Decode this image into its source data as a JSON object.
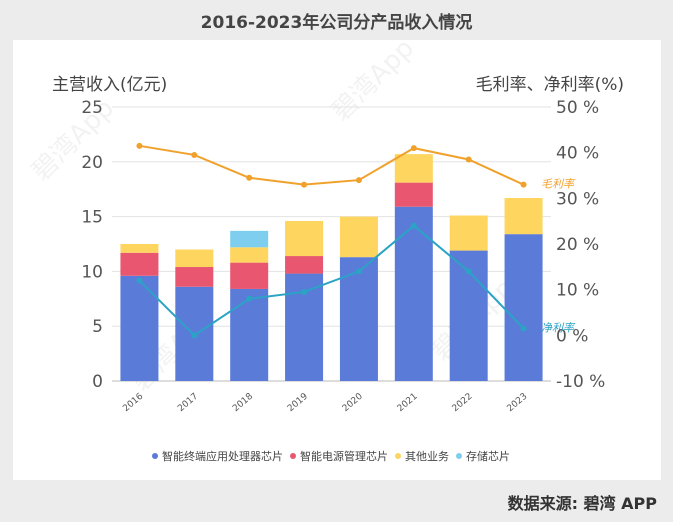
{
  "title": "2016-2023年公司分产品收入情况",
  "source": "数据来源: 碧湾 APP",
  "chart_data": {
    "type": "bar",
    "stacked": true,
    "categories": [
      "2016",
      "2017",
      "2018",
      "2019",
      "2020",
      "2021",
      "2022",
      "2023"
    ],
    "series": [
      {
        "name": "智能终端应用处理器芯片",
        "color": "#5b7bd8",
        "values": [
          9.6,
          8.6,
          8.4,
          9.8,
          11.3,
          15.9,
          11.9,
          13.4
        ]
      },
      {
        "name": "智能电源管理芯片",
        "color": "#e8566f",
        "values": [
          2.1,
          1.8,
          2.4,
          1.6,
          0,
          2.2,
          0,
          0
        ]
      },
      {
        "name": "其他业务",
        "color": "#fdd55f",
        "values": [
          0.8,
          1.6,
          1.4,
          3.2,
          3.7,
          2.6,
          3.2,
          3.3
        ]
      },
      {
        "name": "存储芯片",
        "color": "#7ecfef",
        "values": [
          0,
          0,
          1.5,
          0,
          0,
          0,
          0,
          0
        ]
      }
    ],
    "lines": [
      {
        "name": "毛利率",
        "label": "毛利率",
        "color": "#f0a12b",
        "values": [
          41.5,
          39.5,
          34.5,
          33,
          34,
          41,
          38.5,
          33
        ]
      },
      {
        "name": "净利率",
        "label": "净利率",
        "color": "#2aa3c5",
        "values": [
          12,
          0,
          8,
          9.5,
          14,
          24,
          14,
          1.5
        ]
      }
    ],
    "ylabel": "主营收入(亿元)",
    "y2label": "毛利率、净利率(%)",
    "ylim": [
      0,
      25
    ],
    "yticks": [
      "0",
      "5",
      "10",
      "15",
      "20",
      "25"
    ],
    "y2lim": [
      -10,
      50
    ],
    "y2ticks": [
      "-10 %",
      "0 %",
      "10 %",
      "20 %",
      "30 %",
      "40 %",
      "50 %"
    ],
    "grid": true,
    "legend_position": "bottom"
  }
}
